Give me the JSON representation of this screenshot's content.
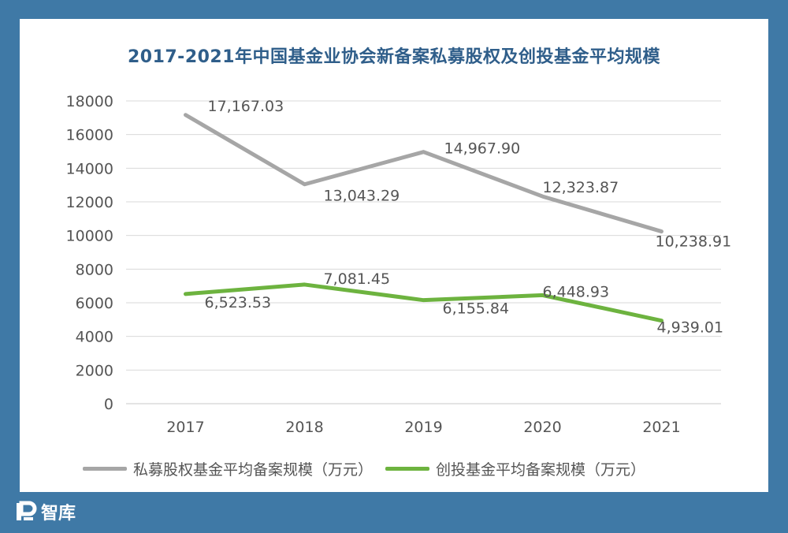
{
  "chart_data": {
    "type": "line",
    "title": "2017-2021年中国基金业协会新备案私募股权及创投基金平均规模",
    "categories": [
      "2017",
      "2018",
      "2019",
      "2020",
      "2021"
    ],
    "ylim": [
      0,
      18000
    ],
    "yticks": [
      0,
      2000,
      4000,
      6000,
      8000,
      10000,
      12000,
      14000,
      16000,
      18000
    ],
    "grid": true,
    "legend_position": "bottom",
    "series": [
      {
        "name": "私募股权基金平均备案规模（万元）",
        "color": "#a6a6a6",
        "values": [
          17167.03,
          13043.29,
          14967.9,
          12323.87,
          10238.91
        ],
        "labels": [
          "17,167.03",
          "13,043.29",
          "14,967.90",
          "12,323.87",
          "10,238.91"
        ]
      },
      {
        "name": "创投基金平均备案规模（万元）",
        "color": "#6db33f",
        "values": [
          6523.53,
          7081.45,
          6155.84,
          6448.93,
          4939.01
        ],
        "labels": [
          "6,523.53",
          "7,081.45",
          "6,155.84",
          "6,448.93",
          "4,939.01"
        ]
      }
    ]
  },
  "watermark": {
    "text": "智库",
    "icon": "brand-logo-icon"
  }
}
